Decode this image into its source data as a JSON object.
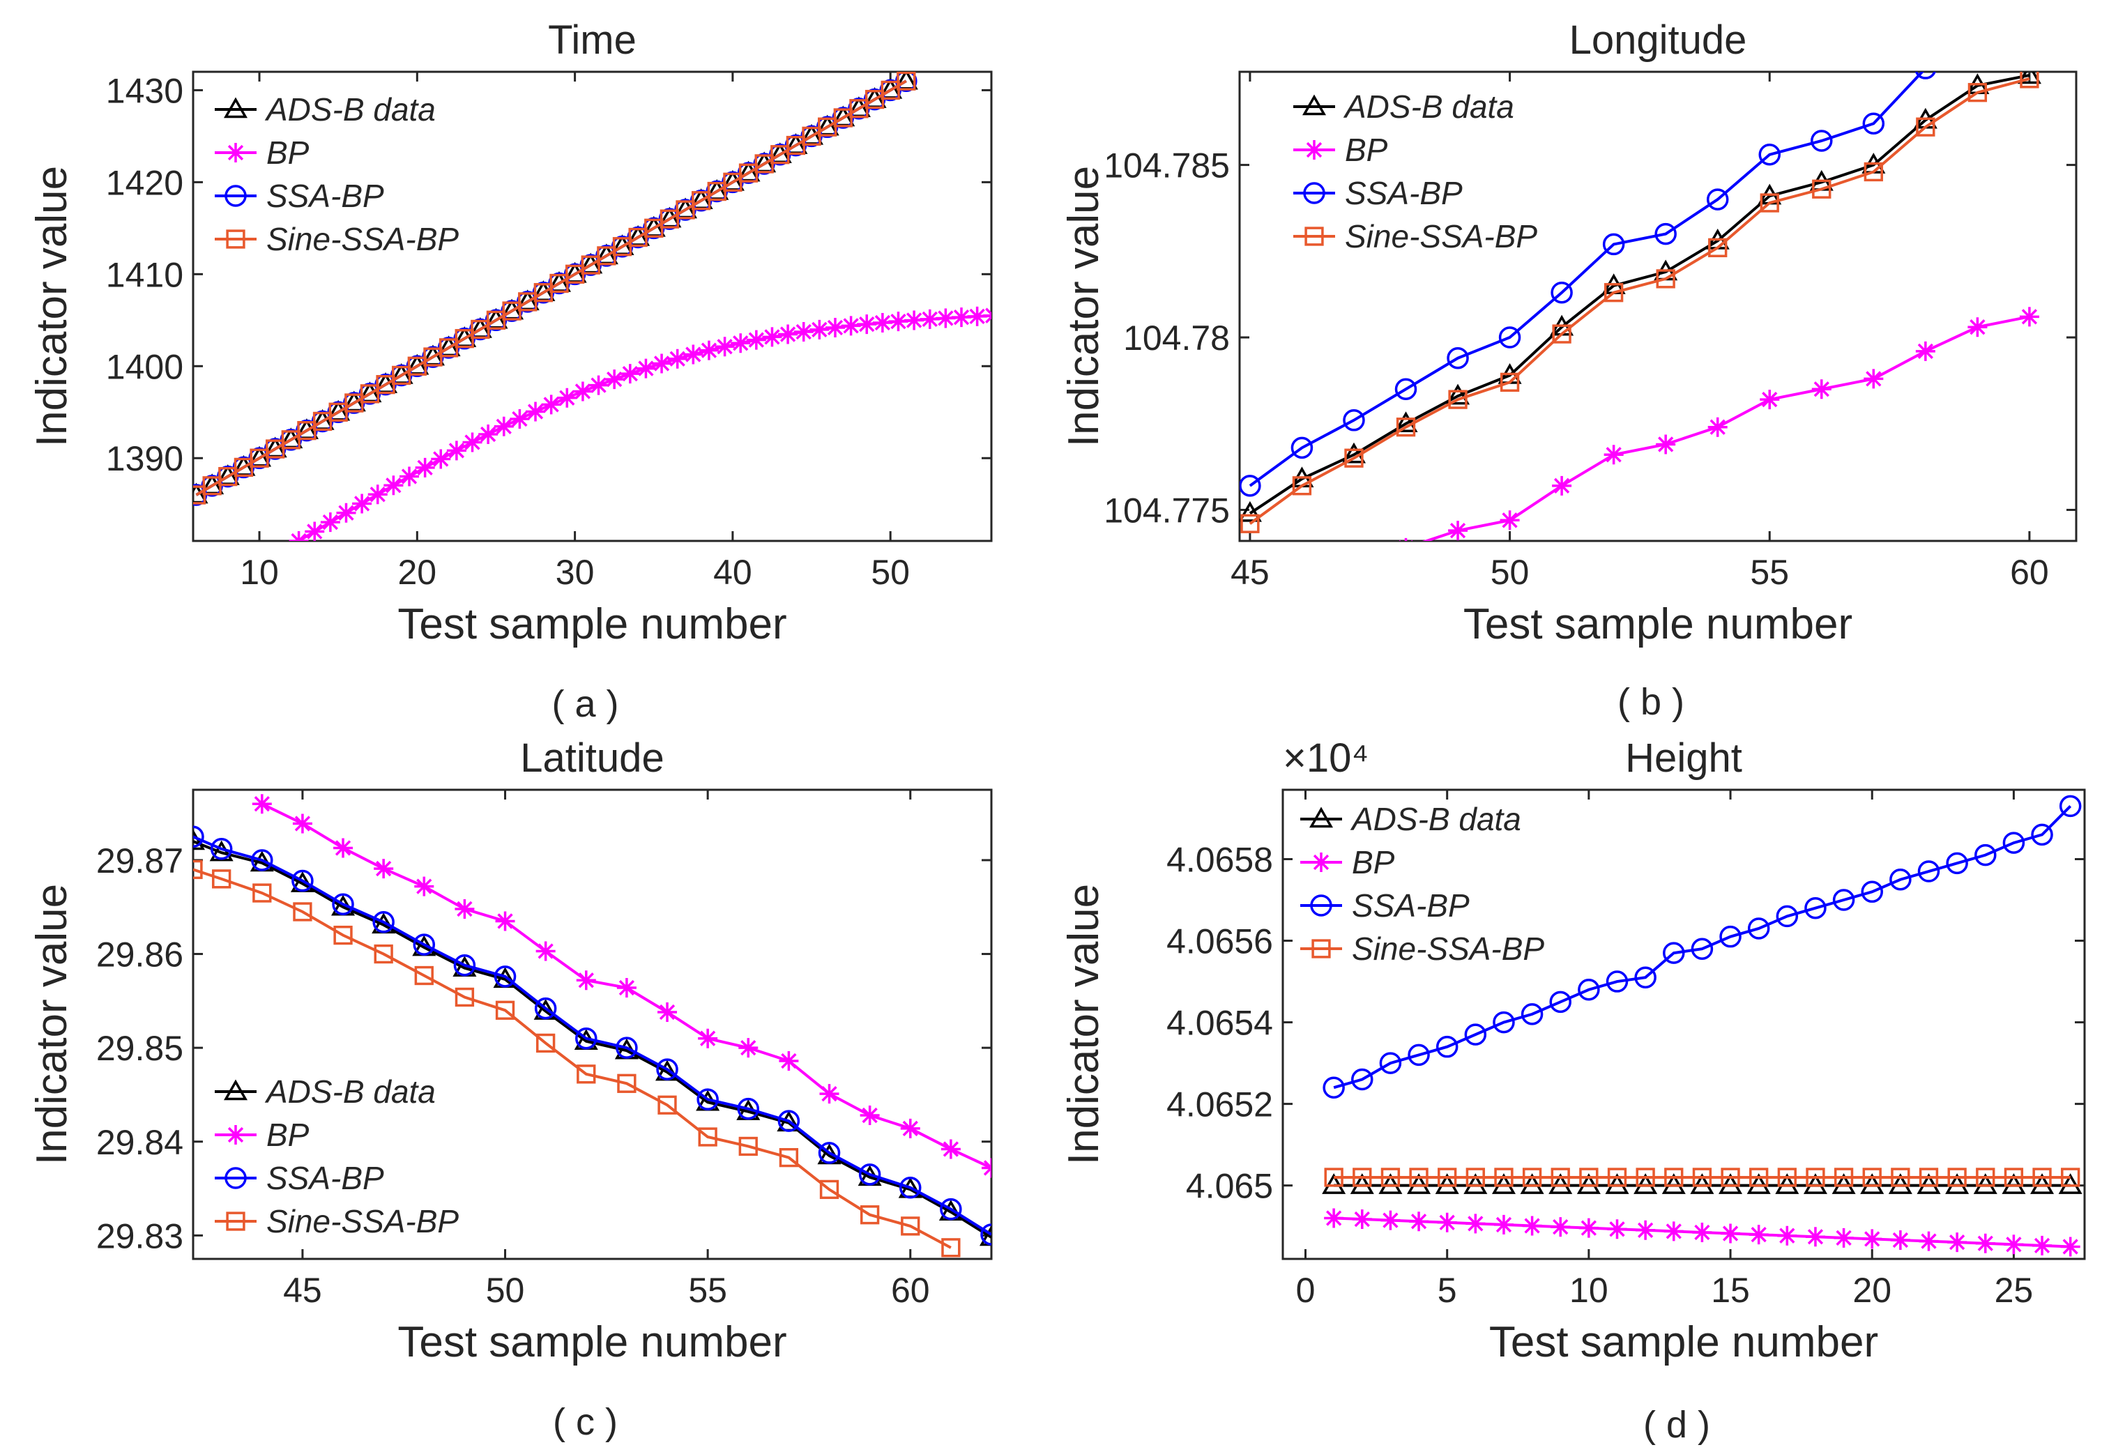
{
  "chart_data": [
    {
      "type": "line",
      "panel": "a",
      "title": "Time",
      "xlabel": "Test sample number",
      "ylabel": "Indicator value",
      "caption": "( a )",
      "xlim": [
        5.8,
        56.4
      ],
      "ylim": [
        1381,
        1432
      ],
      "xticks": [
        10,
        20,
        30,
        40,
        50
      ],
      "yticks": [
        1390,
        1400,
        1410,
        1420,
        1430
      ],
      "ytick_labels": [
        "1390",
        "1400",
        "1410",
        "1420",
        "1430"
      ],
      "exponent_label": "",
      "legend_position": "top-left",
      "series": [
        {
          "name": "ADS-B data",
          "color": "#000000",
          "marker": "triangle",
          "x_start": 6,
          "x_end": 51,
          "x_step": 1,
          "y_start": 1386,
          "y_end": 1431,
          "curve": 0
        },
        {
          "name": "BP",
          "color": "#ff00ff",
          "marker": "star",
          "x_start": 12.5,
          "x_end": 56,
          "x_step": 1,
          "y_start": 1381,
          "y_end": 1405.5,
          "curve": 6.5
        },
        {
          "name": "SSA-BP",
          "color": "#0000ff",
          "marker": "circle",
          "x_start": 6,
          "x_end": 51,
          "x_step": 1,
          "y_start": 1386,
          "y_end": 1431,
          "curve": 0
        },
        {
          "name": "Sine-SSA-BP",
          "color": "#e8592d",
          "marker": "square",
          "x_start": 6,
          "x_end": 51,
          "x_step": 1,
          "y_start": 1386,
          "y_end": 1431,
          "curve": 0
        }
      ]
    },
    {
      "type": "line",
      "panel": "b",
      "title": "Longitude",
      "xlabel": "Test sample number",
      "ylabel": "Indicator value",
      "caption": "( b )",
      "xlim": [
        44.8,
        60.9
      ],
      "ylim": [
        104.7741,
        104.7877
      ],
      "xticks": [
        45,
        50,
        55,
        60
      ],
      "yticks": [
        104.775,
        104.78,
        104.785
      ],
      "ytick_labels": [
        "104.775",
        "104.78",
        "104.785"
      ],
      "exponent_label": "",
      "legend_position": "top-left",
      "series": [
        {
          "name": "ADS-B data",
          "color": "#000000",
          "marker": "triangle",
          "x": [
            45,
            46,
            47,
            48,
            49,
            50,
            51,
            52,
            53,
            54,
            55,
            56,
            57,
            58,
            59,
            60
          ],
          "y": [
            104.7749,
            104.7759,
            104.7766,
            104.7775,
            104.7783,
            104.7789,
            104.7803,
            104.7815,
            104.7819,
            104.7828,
            104.7841,
            104.7845,
            104.785,
            104.7863,
            104.7873,
            104.7876
          ]
        },
        {
          "name": "BP",
          "color": "#ff00ff",
          "marker": "star",
          "x": [
            48,
            49,
            50,
            51,
            52,
            53,
            54,
            55,
            56,
            57,
            58,
            59,
            60
          ],
          "y": [
            104.7739,
            104.7744,
            104.7747,
            104.7757,
            104.7766,
            104.7769,
            104.7774,
            104.7782,
            104.7785,
            104.7788,
            104.7796,
            104.7803,
            104.7806
          ]
        },
        {
          "name": "SSA-BP",
          "color": "#0000ff",
          "marker": "circle",
          "x": [
            45,
            46,
            47,
            48,
            49,
            50,
            51,
            52,
            53,
            54,
            55,
            56,
            57,
            58
          ],
          "y": [
            104.7757,
            104.7768,
            104.7776,
            104.7785,
            104.7794,
            104.78,
            104.7813,
            104.7827,
            104.783,
            104.784,
            104.7853,
            104.7857,
            104.7862,
            104.7878
          ]
        },
        {
          "name": "Sine-SSA-BP",
          "color": "#e8592d",
          "marker": "square",
          "x": [
            45,
            46,
            47,
            48,
            49,
            50,
            51,
            52,
            53,
            54,
            55,
            56,
            57,
            58,
            59,
            60
          ],
          "y": [
            104.7746,
            104.7757,
            104.7765,
            104.7774,
            104.7782,
            104.7787,
            104.7801,
            104.7813,
            104.7817,
            104.7826,
            104.7839,
            104.7843,
            104.7848,
            104.7861,
            104.7871,
            104.7875
          ]
        }
      ]
    },
    {
      "type": "line",
      "panel": "c",
      "title": "Latitude",
      "xlabel": "Test sample number",
      "ylabel": "Indicator value",
      "caption": "( c )",
      "xlim": [
        42.3,
        62
      ],
      "ylim": [
        29.8275,
        29.8775
      ],
      "xticks": [
        45,
        50,
        55,
        60
      ],
      "yticks": [
        29.83,
        29.84,
        29.85,
        29.86,
        29.87
      ],
      "ytick_labels": [
        "29.83",
        "29.84",
        "29.85",
        "29.86",
        "29.87"
      ],
      "exponent_label": "",
      "legend_position": "bottom-left",
      "series": [
        {
          "name": "ADS-B data",
          "color": "#000000",
          "marker": "triangle",
          "x": [
            42.3,
            43,
            44,
            45,
            46,
            47,
            48,
            49,
            50,
            51,
            52,
            53,
            54,
            55,
            56,
            57,
            58,
            59,
            60,
            61,
            62
          ],
          "y": [
            29.872,
            29.8708,
            29.8697,
            29.8675,
            29.865,
            29.8631,
            29.8607,
            29.8585,
            29.8573,
            29.8539,
            29.8507,
            29.8497,
            29.8474,
            29.8442,
            29.8432,
            29.842,
            29.8385,
            29.8362,
            29.8349,
            29.8325,
            29.8298
          ]
        },
        {
          "name": "BP",
          "color": "#ff00ff",
          "marker": "star",
          "x": [
            44,
            45,
            46,
            47,
            48,
            49,
            50,
            51,
            52,
            53,
            54,
            55,
            56,
            57,
            58,
            59,
            60,
            61,
            62
          ],
          "y": [
            29.876,
            29.8739,
            29.8713,
            29.8691,
            29.8672,
            29.8648,
            29.8635,
            29.8603,
            29.8572,
            29.8564,
            29.8538,
            29.851,
            29.85,
            29.8486,
            29.8451,
            29.8428,
            29.8414,
            29.8392,
            29.8372
          ]
        },
        {
          "name": "SSA-BP",
          "color": "#0000ff",
          "marker": "circle",
          "x": [
            42.3,
            43,
            44,
            45,
            46,
            47,
            48,
            49,
            50,
            51,
            52,
            53,
            54,
            55,
            56,
            57,
            58,
            59,
            60,
            61,
            62
          ],
          "y": [
            29.8725,
            29.8712,
            29.87,
            29.8678,
            29.8653,
            29.8634,
            29.861,
            29.8588,
            29.8576,
            29.8542,
            29.851,
            29.85,
            29.8477,
            29.8445,
            29.8435,
            29.8422,
            29.8388,
            29.8365,
            29.8351,
            29.8328,
            29.8301
          ]
        },
        {
          "name": "Sine-SSA-BP",
          "color": "#e8592d",
          "marker": "square",
          "x": [
            42.3,
            43,
            44,
            45,
            46,
            47,
            48,
            49,
            50,
            51,
            52,
            53,
            54,
            55,
            56,
            57,
            58,
            59,
            60,
            61
          ],
          "y": [
            29.869,
            29.868,
            29.8665,
            29.8645,
            29.862,
            29.86,
            29.8577,
            29.8554,
            29.854,
            29.8505,
            29.8472,
            29.8462,
            29.8439,
            29.8405,
            29.8395,
            29.8383,
            29.8349,
            29.8322,
            29.831,
            29.8287
          ]
        }
      ]
    },
    {
      "type": "line",
      "panel": "d",
      "title": "Height",
      "xlabel": "Test sample number",
      "ylabel": "Indicator value",
      "caption": "( d )",
      "exponent_label": "×10⁴",
      "xlim": [
        -0.8,
        27.5
      ],
      "ylim": [
        4.06482,
        4.06597
      ],
      "xticks": [
        0,
        5,
        10,
        15,
        20,
        25
      ],
      "yticks": [
        4.065,
        4.0652,
        4.0654,
        4.0656,
        4.0658
      ],
      "ytick_labels": [
        "4.065",
        "4.0652",
        "4.0654",
        "4.0656",
        "4.0658"
      ],
      "legend_position": "top-left",
      "series": [
        {
          "name": "ADS-B data",
          "color": "#000000",
          "marker": "triangle",
          "x_start": 1,
          "x_end": 27,
          "x_step": 1,
          "y_start": 4.065,
          "y_end": 4.065,
          "curve": 0
        },
        {
          "name": "BP",
          "color": "#ff00ff",
          "marker": "star",
          "x_start": 1,
          "x_end": 27,
          "x_step": 1,
          "y_start": 4.06492,
          "y_end": 4.06485,
          "curve": 0
        },
        {
          "name": "SSA-BP",
          "color": "#0000ff",
          "marker": "circle",
          "x": [
            1,
            2,
            3,
            4,
            5,
            6,
            7,
            8,
            9,
            10,
            11,
            12,
            13,
            14,
            15,
            16,
            17,
            18,
            19,
            20,
            21,
            22,
            23,
            24,
            25,
            26,
            27
          ],
          "y": [
            4.06524,
            4.06526,
            4.0653,
            4.06532,
            4.06534,
            4.06537,
            4.0654,
            4.06542,
            4.06545,
            4.06548,
            4.0655,
            4.06551,
            4.06557,
            4.06558,
            4.06561,
            4.06563,
            4.06566,
            4.06568,
            4.0657,
            4.06572,
            4.06575,
            4.06577,
            4.06579,
            4.06581,
            4.06584,
            4.06586,
            4.06593
          ]
        },
        {
          "name": "Sine-SSA-BP",
          "color": "#e8592d",
          "marker": "square",
          "x_start": 1,
          "x_end": 27,
          "x_step": 1,
          "y_start": 4.06502,
          "y_end": 4.06502,
          "curve": 0
        }
      ]
    }
  ]
}
